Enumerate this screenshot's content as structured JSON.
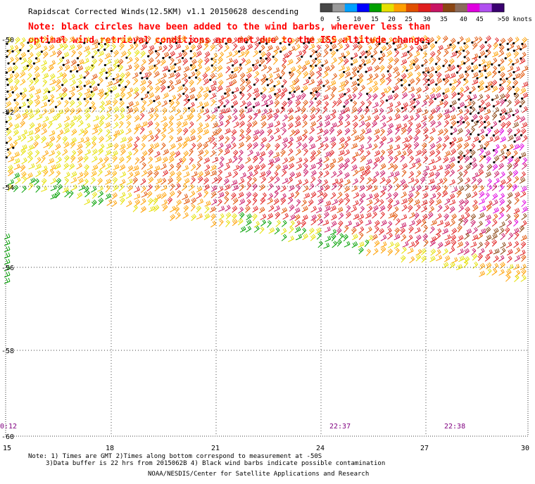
{
  "header": {
    "title": "Rapidscat Corrected Winds(12.5KM) v1.1 20150628 descending",
    "note_line1": "Note: black circles have been added to the wind barbs, wherever less than",
    "note_line2": "optimal wind retrieval conditions are met due to the ISS altitude changes"
  },
  "legend": {
    "colors": [
      "#474747",
      "#9a9a9a",
      "#00a0ff",
      "#0000ff",
      "#00a000",
      "#e5e000",
      "#ff9f00",
      "#e05000",
      "#e01e1e",
      "#c81464",
      "#8b4513",
      "#8b6b5b",
      "#e000e0",
      "#b050f0",
      "#3a0070"
    ],
    "labels": [
      "0",
      "5",
      "10",
      "15",
      "20",
      "25",
      "30",
      "35",
      "40",
      "45",
      ">50 knots"
    ]
  },
  "axes": {
    "y_labels": [
      "-50",
      "-52",
      "-54",
      "-56",
      "-58",
      "-60"
    ],
    "x_labels": [
      "15",
      "18",
      "21",
      "24",
      "27",
      "30"
    ]
  },
  "times": [
    "0:12",
    "22:37",
    "22:38"
  ],
  "footer": {
    "note1": "Note: 1) Times are GMT 2)Times along bottom correspond to measurement at -50S",
    "note2": "3)Data buffer is 22 hrs from 2015062B 4) Black wind barbs indicate possible contamination",
    "credit": "NOAA/NESDIS/Center for Satellite Applications and Research"
  },
  "map": {
    "lat_range": [
      -60,
      -50
    ],
    "lon_range": [
      15,
      30
    ],
    "barb_colors": {
      "yellow": "#e5e000",
      "light_orange": "#ffb000",
      "orange": "#ff9f00",
      "dark_orange": "#e05000",
      "red": "#e01e1e",
      "crimson": "#c81464",
      "brown": "#8b4513",
      "magenta": "#e000e0",
      "green": "#00a000",
      "black": "#000000"
    }
  }
}
